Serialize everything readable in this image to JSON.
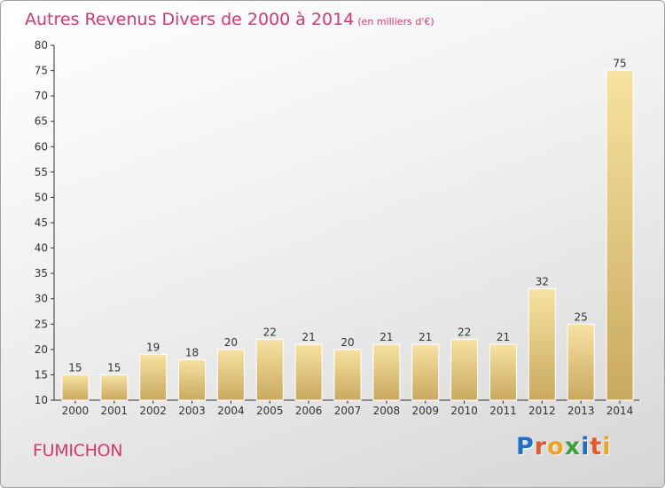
{
  "header": {
    "title": "Autres Revenus Divers de 2000 à 2014",
    "subtitle": "(en milliers d'€)"
  },
  "footer": {
    "place": "FUMICHON",
    "brand": "Proxiti"
  },
  "colors": {
    "accent": "#d4386f",
    "bar_light": "#f7e2a2",
    "bar_dark": "#c9a95e",
    "brand_letters": [
      "#1f6fc7",
      "#e8562a",
      "#f0a21c",
      "#3aa33a",
      "#1f6fc7",
      "#e8562a",
      "#f0a21c"
    ]
  },
  "chart_data": {
    "type": "bar",
    "title": "Autres Revenus Divers de 2000 à 2014",
    "subtitle": "(en milliers d'€)",
    "categories": [
      "2000",
      "2001",
      "2002",
      "2003",
      "2004",
      "2005",
      "2006",
      "2007",
      "2008",
      "2009",
      "2010",
      "2011",
      "2012",
      "2013",
      "2014"
    ],
    "values": [
      15,
      15,
      19,
      18,
      20,
      22,
      21,
      20,
      21,
      21,
      22,
      21,
      32,
      25,
      75
    ],
    "ylim": [
      10,
      80
    ],
    "yticks": [
      10,
      15,
      20,
      25,
      30,
      35,
      40,
      45,
      50,
      55,
      60,
      65,
      70,
      75,
      80
    ],
    "grid": false,
    "data_labels": true
  }
}
